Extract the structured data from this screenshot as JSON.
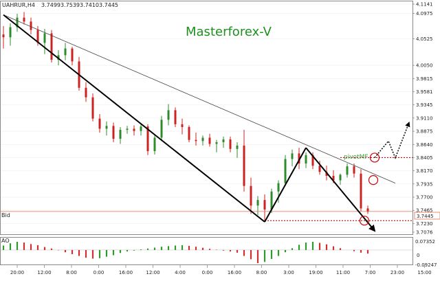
{
  "header": {
    "symbol": "UAHRUR,H4",
    "open": "3.7499",
    "high": "3.7539",
    "low": "3.7410",
    "close": "3.7445"
  },
  "brand": "Masterforex-V",
  "annotation": "pivotMF",
  "bid_label": "Bid",
  "current_price_label": "3.7445",
  "indicator": {
    "name": "AO",
    "ticks": [
      "0.07352",
      "0",
      "-0.09247"
    ]
  },
  "colors": {
    "up_candle": "#2e8b2e",
    "down_candle": "#cc2222",
    "bid_line": "#e07050",
    "pivot_line": "#cc0000",
    "brand_text": "#1f8f1f",
    "ao_up": "#2e9a2e",
    "ao_down": "#d03030"
  },
  "chart_data": {
    "type": "candlestick",
    "price_ticks": [
      "4.1141",
      "4.0975",
      "4.0525",
      "4.0050",
      "3.9815",
      "3.9581",
      "3.9345",
      "3.9110",
      "3.8875",
      "3.8640",
      "3.8405",
      "3.8170",
      "3.7935",
      "3.7700",
      "3.7465",
      "3.7230",
      "3.7076"
    ],
    "price_range": [
      3.7076,
      4.1141
    ],
    "time_ticks": [
      "20:00",
      "12:00",
      "8:00",
      "0:00",
      "16:00",
      "12:00",
      "4:00",
      "0:00",
      "16:00",
      "8:00",
      "3:00",
      "19:00",
      "11:00",
      "7:00",
      "23:00",
      "15:00"
    ],
    "bid": 3.7445,
    "pivot_levels": [
      3.8405,
      3.7282
    ],
    "trendlines": [
      {
        "from": [
          0,
          4.095
        ],
        "to": [
          57,
          3.795
        ],
        "style": "thin"
      },
      {
        "from": [
          0,
          4.095
        ],
        "to": [
          38,
          3.726
        ],
        "style": "bold"
      },
      {
        "from": [
          38,
          3.726
        ],
        "to": [
          44,
          3.858
        ],
        "style": "bold"
      },
      {
        "from": [
          44,
          3.858
        ],
        "to": [
          54,
          3.71
        ],
        "style": "bold-arrow"
      }
    ],
    "forecast_path": [
      [
        54,
        3.8405
      ],
      [
        56,
        3.87
      ],
      [
        57,
        3.84
      ],
      [
        59,
        3.903
      ]
    ],
    "ohlc": [
      [
        4.06,
        4.075,
        4.035,
        4.055
      ],
      [
        4.055,
        4.08,
        4.04,
        4.073
      ],
      [
        4.073,
        4.097,
        4.065,
        4.09
      ],
      [
        4.09,
        4.1,
        4.078,
        4.083
      ],
      [
        4.083,
        4.09,
        4.06,
        4.068
      ],
      [
        4.068,
        4.075,
        4.04,
        4.045
      ],
      [
        4.045,
        4.07,
        4.025,
        4.062
      ],
      [
        4.062,
        4.068,
        4.01,
        4.015
      ],
      [
        4.015,
        4.032,
        4.005,
        4.023
      ],
      [
        4.023,
        4.045,
        4.014,
        4.035
      ],
      [
        4.035,
        4.038,
        4.005,
        4.012
      ],
      [
        4.012,
        4.02,
        3.96,
        3.965
      ],
      [
        3.965,
        3.975,
        3.94,
        3.948
      ],
      [
        3.948,
        3.955,
        3.905,
        3.91
      ],
      [
        3.91,
        3.918,
        3.885,
        3.892
      ],
      [
        3.892,
        3.905,
        3.88,
        3.897
      ],
      [
        3.897,
        3.903,
        3.868,
        3.874
      ],
      [
        3.874,
        3.895,
        3.865,
        3.89
      ],
      [
        3.89,
        3.897,
        3.883,
        3.892
      ],
      [
        3.892,
        3.898,
        3.88,
        3.888
      ],
      [
        3.888,
        3.902,
        3.88,
        3.896
      ],
      [
        3.896,
        3.9,
        3.845,
        3.852
      ],
      [
        3.852,
        3.88,
        3.846,
        3.876
      ],
      [
        3.876,
        3.915,
        3.87,
        3.908
      ],
      [
        3.908,
        3.936,
        3.898,
        3.925
      ],
      [
        3.925,
        3.93,
        3.895,
        3.9
      ],
      [
        3.9,
        3.91,
        3.882,
        3.895
      ],
      [
        3.895,
        3.898,
        3.868,
        3.872
      ],
      [
        3.872,
        3.885,
        3.862,
        3.87
      ],
      [
        3.87,
        3.88,
        3.862,
        3.876
      ],
      [
        3.876,
        3.883,
        3.86,
        3.865
      ],
      [
        3.865,
        3.872,
        3.85,
        3.868
      ],
      [
        3.868,
        3.878,
        3.858,
        3.873
      ],
      [
        3.873,
        3.878,
        3.85,
        3.856
      ],
      [
        3.856,
        3.868,
        3.84,
        3.862
      ],
      [
        3.862,
        3.89,
        3.78,
        3.79
      ],
      [
        3.79,
        3.805,
        3.74,
        3.755
      ],
      [
        3.755,
        3.772,
        3.738,
        3.765
      ],
      [
        3.765,
        3.775,
        3.726,
        3.748
      ],
      [
        3.748,
        3.785,
        3.742,
        3.78
      ],
      [
        3.78,
        3.8,
        3.76,
        3.795
      ],
      [
        3.795,
        3.845,
        3.79,
        3.838
      ],
      [
        3.838,
        3.855,
        3.825,
        3.848
      ],
      [
        3.848,
        3.858,
        3.82,
        3.83
      ],
      [
        3.83,
        3.85,
        3.822,
        3.845
      ],
      [
        3.845,
        3.85,
        3.82,
        3.826
      ],
      [
        3.826,
        3.835,
        3.81,
        3.815
      ],
      [
        3.815,
        3.826,
        3.8,
        3.808
      ],
      [
        3.808,
        3.818,
        3.795,
        3.8
      ],
      [
        3.8,
        3.812,
        3.792,
        3.81
      ],
      [
        3.81,
        3.83,
        3.805,
        3.825
      ],
      [
        3.825,
        3.83,
        3.805,
        3.812
      ],
      [
        3.812,
        3.82,
        3.745,
        3.75
      ],
      [
        3.75,
        3.755,
        3.74,
        3.744
      ]
    ],
    "ao": [
      0.03,
      0.045,
      0.055,
      0.05,
      0.04,
      0.032,
      0.02,
      0.01,
      -0.002,
      -0.015,
      -0.028,
      -0.04,
      -0.052,
      -0.058,
      -0.055,
      -0.045,
      -0.035,
      -0.02,
      -0.01,
      -0.004,
      0.004,
      0.01,
      0.016,
      0.022,
      0.026,
      0.03,
      0.032,
      0.028,
      0.022,
      0.015,
      0.008,
      0.002,
      -0.004,
      -0.01,
      -0.018,
      -0.04,
      -0.062,
      -0.088,
      -0.08,
      -0.06,
      -0.04,
      -0.015,
      0.012,
      0.035,
      0.05,
      0.055,
      0.048,
      0.038,
      0.025,
      0.012,
      0.0,
      -0.008,
      -0.018,
      -0.024
    ]
  }
}
